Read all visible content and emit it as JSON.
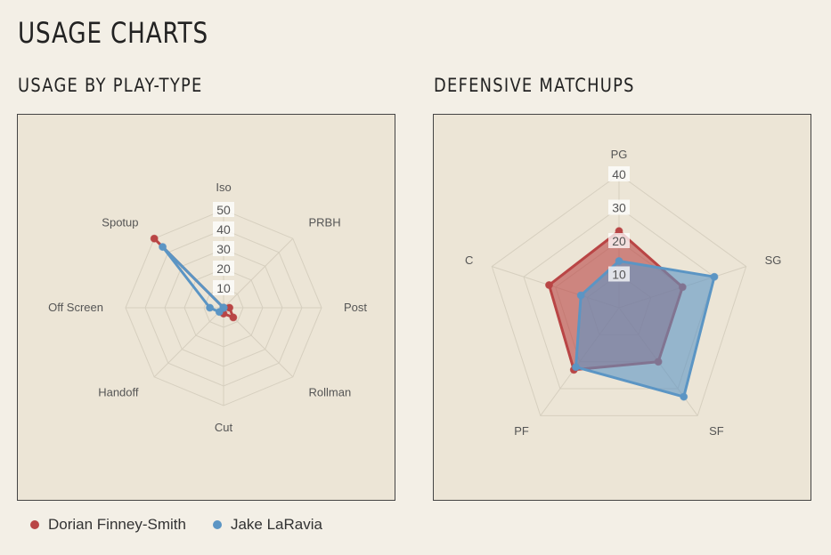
{
  "page": {
    "title": "USAGE CHARTS"
  },
  "colors": {
    "series1": "#b94545",
    "series2": "#5b95c4",
    "grid": "#d6cfbf",
    "panel_bg": "#ece5d6"
  },
  "legend": [
    {
      "name": "Dorian Finney-Smith",
      "color": "#b94545"
    },
    {
      "name": "Jake LaRavia",
      "color": "#5b95c4"
    }
  ],
  "chart_data": [
    {
      "type": "radar",
      "title": "USAGE BY PLAY-TYPE",
      "axes": [
        "Iso",
        "PRBH",
        "Post",
        "Rollman",
        "Cut",
        "Handoff",
        "Off Screen",
        "Spotup"
      ],
      "ticks": [
        "10",
        "20",
        "30",
        "40",
        "50"
      ],
      "rmax": 50,
      "grid": true,
      "series": [
        {
          "name": "Dorian Finney-Smith",
          "values": [
            0,
            0,
            3,
            7,
            3,
            0,
            0,
            50
          ]
        },
        {
          "name": "Jake LaRavia",
          "values": [
            0,
            0,
            0,
            0,
            0,
            3,
            7,
            44
          ]
        }
      ]
    },
    {
      "type": "radar",
      "title": "DEFENSIVE MATCHUPS",
      "axes": [
        "PG",
        "SG",
        "SF",
        "PF",
        "C"
      ],
      "ticks": [
        "10",
        "20",
        "30",
        "40"
      ],
      "rmax": 40,
      "grid": true,
      "series": [
        {
          "name": "Dorian Finney-Smith",
          "values": [
            23,
            20,
            20,
            23,
            22
          ]
        },
        {
          "name": "Jake LaRavia",
          "values": [
            14,
            30,
            33,
            22,
            12
          ]
        }
      ]
    }
  ]
}
